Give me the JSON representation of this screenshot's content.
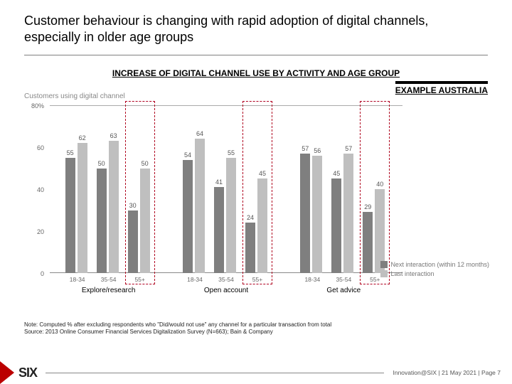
{
  "title": "Customer behaviour is changing with rapid adoption of digital channels, especially in older age groups",
  "subtitle": "INCREASE OF DIGITAL CHANNEL USE BY ACTIVITY AND AGE GROUP",
  "badge": "EXAMPLE AUSTRALIA",
  "chart": {
    "type": "bar",
    "ylabel": "Customers using digital channel",
    "ylim": [
      0,
      80
    ],
    "ytick_step": 20,
    "yticks": [
      0,
      20,
      40,
      60
    ],
    "ymax_label": "80%",
    "series": {
      "next": {
        "label": "Next interaction (within 12 months)",
        "color": "#7f7f7f"
      },
      "last": {
        "label": "Last interaction",
        "color": "#bfbfbf"
      }
    },
    "age_labels": [
      "18-34",
      "35-54",
      "55+"
    ],
    "groups": [
      {
        "name": "Explore/research",
        "pairs": [
          {
            "next": 55,
            "last": 62
          },
          {
            "next": 50,
            "last": 63
          },
          {
            "next": 30,
            "last": 50
          }
        ]
      },
      {
        "name": "Open account",
        "pairs": [
          {
            "next": 54,
            "last": 64
          },
          {
            "next": 41,
            "last": 55
          },
          {
            "next": 24,
            "last": 45
          }
        ]
      },
      {
        "name": "Get advice",
        "pairs": [
          {
            "next": 57,
            "last": 56
          },
          {
            "next": 45,
            "last": 57
          },
          {
            "next": 29,
            "last": 40
          }
        ]
      }
    ],
    "highlight_col_index": 2,
    "highlight_color": "#b00020",
    "background_color": "#ffffff"
  },
  "notes": {
    "line1": "Note: Computed % after excluding respondents who \"Did/would not use\" any channel for a particular transaction from total",
    "line2": "Source: 2013 Online Consumer Financial Services Digitalization Survey (N=663); Bain & Company"
  },
  "footer": {
    "logo": "SIX",
    "info": "Innovation@SIX |  21 May 2021  | Page 7"
  }
}
